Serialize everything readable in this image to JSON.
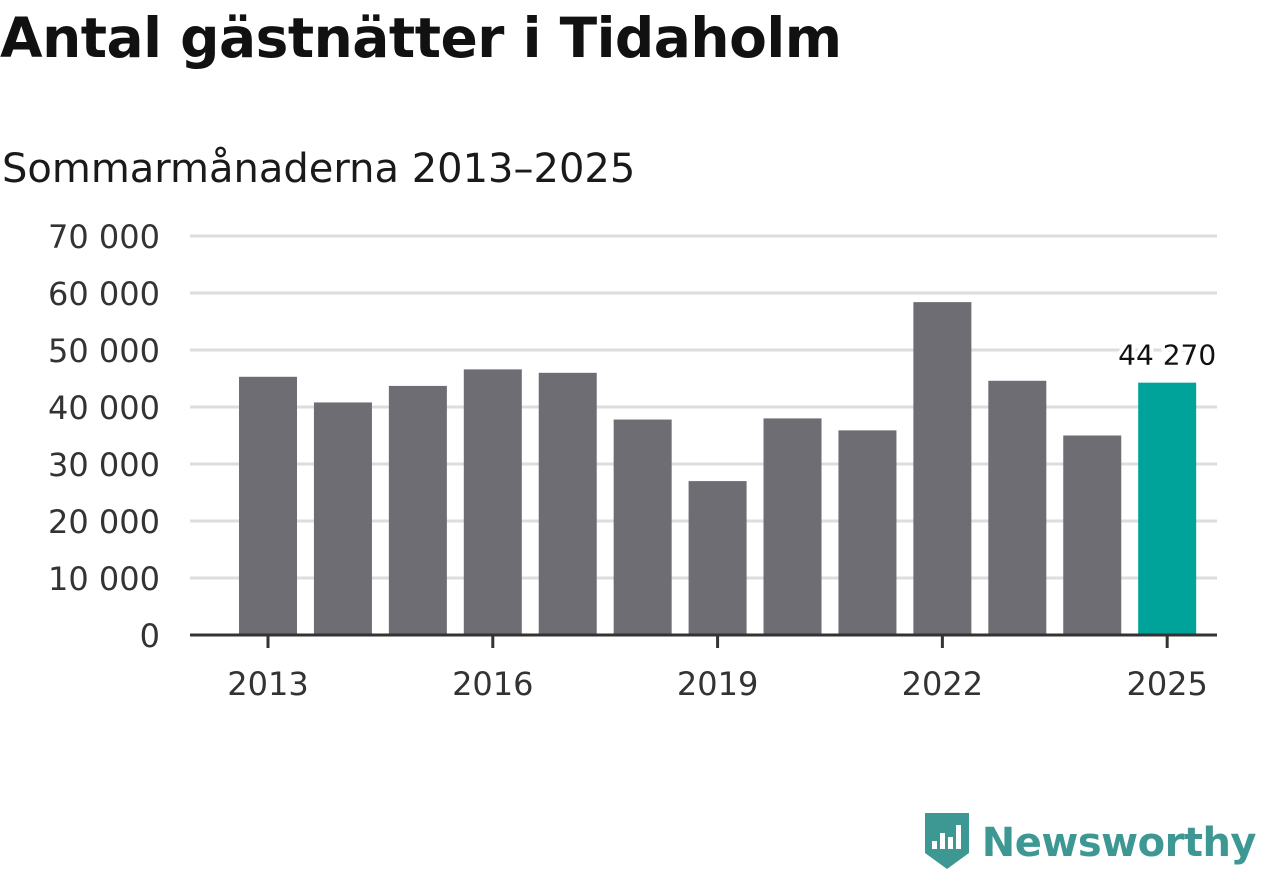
{
  "title": "Antal gästnätter i Tidaholm",
  "subtitle": "Sommarmånaderna 2013–2025",
  "colors": {
    "bar": "#6e6d73",
    "highlight": "#00a39a",
    "grid": "#dddddd",
    "axis": "#333333",
    "brand": "#3d9893"
  },
  "brand": {
    "name": "Newsworthy",
    "icon": "newsworthy-logo-icon"
  },
  "chart_data": {
    "type": "bar",
    "title": "Antal gästnätter i Tidaholm",
    "subtitle": "Sommarmånaderna 2013–2025",
    "xlabel": "",
    "ylabel": "",
    "categories": [
      "2013",
      "2014",
      "2015",
      "2016",
      "2017",
      "2018",
      "2019",
      "2020",
      "2021",
      "2022",
      "2023",
      "2024",
      "2025"
    ],
    "values": [
      45300,
      40800,
      43700,
      46600,
      46000,
      37800,
      27000,
      38000,
      35900,
      58400,
      44600,
      35000,
      44270
    ],
    "highlight_index": 12,
    "ylim": [
      0,
      70000
    ],
    "yticks": [
      0,
      10000,
      20000,
      30000,
      40000,
      50000,
      60000,
      70000
    ],
    "ytick_labels": [
      "0",
      "10 000",
      "20 000",
      "30 000",
      "40 000",
      "50 000",
      "60 000",
      "70 000"
    ],
    "xtick_labels": [
      "2013",
      "2016",
      "2019",
      "2022",
      "2025"
    ],
    "xtick_categories": [
      "2013",
      "2016",
      "2019",
      "2022",
      "2025"
    ],
    "data_labels": [
      {
        "category": "2025",
        "text": "44 270"
      }
    ],
    "grid": true
  }
}
